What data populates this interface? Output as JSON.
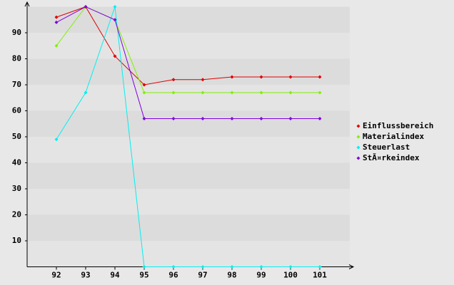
{
  "chart_data": {
    "type": "line",
    "categories": [
      "92",
      "93",
      "94",
      "95",
      "96",
      "97",
      "98",
      "99",
      "100",
      "101"
    ],
    "series": [
      {
        "name": "Einflussbereich",
        "color": "#e00000",
        "values": [
          96,
          100,
          81,
          70,
          72,
          72,
          73,
          73,
          73,
          73
        ]
      },
      {
        "name": "Materialindex",
        "color": "#80f000",
        "values": [
          85,
          100,
          95,
          67,
          67,
          67,
          67,
          67,
          67,
          67
        ]
      },
      {
        "name": "Steuerlast",
        "color": "#00f0f0",
        "values": [
          49,
          67,
          100,
          0,
          0,
          0,
          0,
          0,
          0,
          0
        ]
      },
      {
        "name": "StÃ¤rkeindex",
        "color": "#8000e0",
        "values": [
          94,
          100,
          95,
          57,
          57,
          57,
          57,
          57,
          57,
          57
        ]
      }
    ],
    "ylim": [
      0,
      100
    ],
    "yticks": [
      10,
      20,
      30,
      40,
      50,
      60,
      70,
      80,
      90
    ],
    "grid": true,
    "legend": "right"
  }
}
